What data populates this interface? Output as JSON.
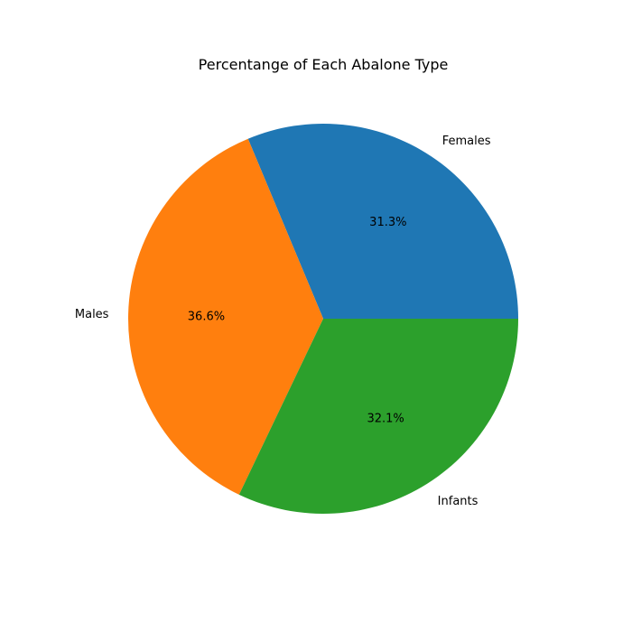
{
  "chart_data": {
    "type": "pie",
    "title": "Percentange of Each Abalone Type",
    "slices": [
      {
        "label": "Females",
        "value": 31.3,
        "pct_label": "31.3%",
        "color": "#1f77b4"
      },
      {
        "label": "Males",
        "value": 36.6,
        "pct_label": "36.6%",
        "color": "#ff7f0e"
      },
      {
        "label": "Infants",
        "value": 32.1,
        "pct_label": "32.1%",
        "color": "#2ca02c"
      }
    ],
    "start_angle_deg": 0,
    "direction": "counterclockwise"
  }
}
